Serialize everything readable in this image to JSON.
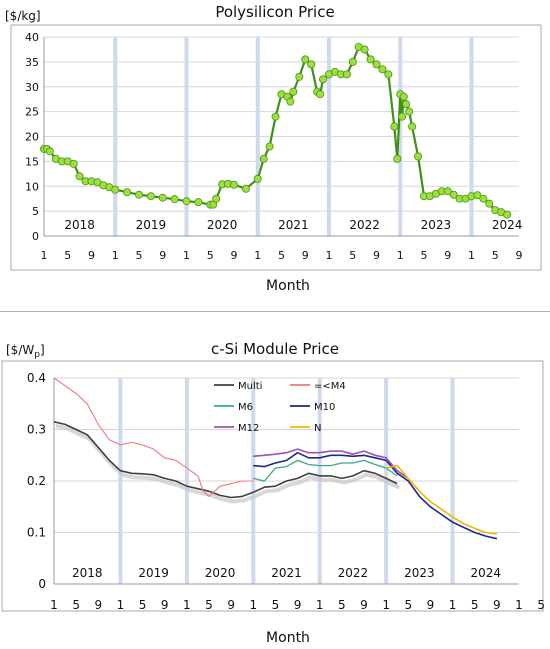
{
  "chart_data": [
    {
      "type": "line",
      "title": "Polysilicon Price",
      "ylabel": "[$/kg]",
      "xlabel": "Month",
      "ylim": [
        0,
        40
      ],
      "yticks": [
        0,
        5,
        10,
        15,
        20,
        25,
        30,
        35,
        40
      ],
      "year_labels": [
        "2018",
        "2019",
        "2020",
        "2021",
        "2022",
        "2023",
        "2024"
      ],
      "month_ticks": [
        "1",
        "5",
        "9",
        "1",
        "5",
        "9",
        "1",
        "5",
        "9",
        "1",
        "5",
        "9",
        "1",
        "5",
        "9",
        "1",
        "5",
        "9",
        "1",
        "5",
        "9"
      ],
      "grid": true,
      "x_unit": "months since Jan 2018",
      "colors": {
        "line": "#3f8f1a",
        "marker_fill": "#9be03c",
        "marker_stroke": "#4d8f1a",
        "year_band": "#cdd9ec"
      },
      "series": [
        {
          "x": [
            0,
            0.5,
            1,
            2,
            3,
            4,
            5,
            6,
            7,
            8,
            9,
            10,
            11,
            12,
            14,
            16,
            18,
            20,
            22,
            24,
            26,
            28,
            28.5,
            29,
            30,
            31,
            32,
            34,
            36,
            37,
            38,
            39,
            40,
            41,
            41.5,
            42,
            43,
            44,
            45,
            46,
            46.5,
            47,
            48,
            49,
            50,
            51,
            52,
            53,
            54,
            55,
            56,
            57,
            58,
            59,
            59.5,
            60,
            60.3,
            60.6,
            61,
            61.5,
            62,
            63,
            64,
            65,
            66,
            67,
            68,
            69,
            70,
            71,
            72,
            73,
            74,
            75,
            76,
            77,
            78
          ],
          "y": [
            17.5,
            17.5,
            17,
            15.5,
            15,
            15,
            14.5,
            12,
            11,
            11,
            10.8,
            10.2,
            9.8,
            9.3,
            8.8,
            8.3,
            8,
            7.7,
            7.4,
            7,
            6.8,
            6.3,
            6.3,
            7.5,
            10.4,
            10.5,
            10.3,
            9.5,
            11.5,
            15.5,
            18,
            24,
            28.5,
            28,
            27,
            29,
            32,
            35.5,
            34.5,
            29,
            28.5,
            31.5,
            32.5,
            33,
            32.5,
            32.5,
            35,
            38,
            37.5,
            35.5,
            34.5,
            33.5,
            32.5,
            22,
            15.5,
            28.5,
            24,
            28,
            26.5,
            25,
            22,
            16,
            8,
            8,
            8.5,
            9,
            9,
            8.3,
            7.5,
            7.5,
            8,
            8.2,
            7.5,
            6.5,
            5.2,
            4.8,
            4.3
          ]
        }
      ]
    },
    {
      "type": "line",
      "title": "c-Si Module Price",
      "ylabel": "[$/W",
      "ylabel_sub": "p",
      "ylabel_suffix": "]",
      "xlabel": "Month",
      "ylim": [
        0,
        0.4
      ],
      "yticks": [
        "0",
        "0.1",
        "0.2",
        "0.3",
        "0.4"
      ],
      "year_labels": [
        "2018",
        "2019",
        "2020",
        "2021",
        "2022",
        "2023",
        "2024"
      ],
      "month_ticks": [
        "1",
        "5",
        "9",
        "1",
        "5",
        "9",
        "1",
        "5",
        "9",
        "1",
        "5",
        "9",
        "1",
        "5",
        "9",
        "1",
        "5",
        "9",
        "1",
        "5",
        "9",
        "1",
        "5",
        "9"
      ],
      "grid": true,
      "legend_position": "top-center",
      "x_unit": "months since Jan 2018",
      "colors": {
        "year_band": "#cdd9ec"
      },
      "series": [
        {
          "name": "Multi",
          "color": "#404040",
          "width": 1.6,
          "x": [
            0,
            2,
            4,
            6,
            8,
            10,
            12,
            14,
            16,
            18,
            20,
            22,
            24,
            26,
            28,
            30,
            32,
            34,
            36,
            38,
            40,
            42,
            44,
            46,
            48,
            50,
            52,
            54,
            56,
            58,
            60,
            62
          ],
          "y": [
            0.315,
            0.31,
            0.3,
            0.29,
            0.265,
            0.24,
            0.22,
            0.215,
            0.214,
            0.212,
            0.205,
            0.2,
            0.19,
            0.185,
            0.18,
            0.172,
            0.168,
            0.17,
            0.178,
            0.188,
            0.19,
            0.2,
            0.205,
            0.215,
            0.21,
            0.21,
            0.205,
            0.21,
            0.22,
            0.215,
            0.205,
            0.195
          ]
        },
        {
          "name": "=<M4",
          "color": "#f07878",
          "width": 1.1,
          "x": [
            0,
            2,
            4,
            6,
            8,
            10,
            12,
            14,
            16,
            18,
            20,
            22,
            24,
            26,
            27,
            28,
            30,
            32,
            34,
            36
          ],
          "y": [
            0.4,
            0.385,
            0.37,
            0.35,
            0.31,
            0.28,
            0.27,
            0.275,
            0.27,
            0.262,
            0.245,
            0.24,
            0.225,
            0.21,
            0.18,
            0.17,
            0.19,
            0.195,
            0.2,
            0.2
          ]
        },
        {
          "name": "M6",
          "color": "#3aaa8a",
          "width": 1.3,
          "x": [
            36,
            38,
            40,
            42,
            44,
            46,
            48,
            50,
            52,
            54,
            56,
            58,
            60,
            62
          ],
          "y": [
            0.205,
            0.2,
            0.225,
            0.228,
            0.24,
            0.232,
            0.23,
            0.23,
            0.235,
            0.235,
            0.24,
            0.232,
            0.225,
            0.21
          ]
        },
        {
          "name": "M10",
          "color": "#1a2a8a",
          "width": 1.6,
          "x": [
            36,
            38,
            40,
            42,
            44,
            46,
            48,
            50,
            52,
            54,
            56,
            58,
            60,
            62,
            64,
            66,
            68,
            70,
            72,
            74,
            76,
            78,
            80
          ],
          "y": [
            0.23,
            0.228,
            0.235,
            0.24,
            0.255,
            0.245,
            0.245,
            0.25,
            0.25,
            0.248,
            0.25,
            0.245,
            0.24,
            0.215,
            0.2,
            0.17,
            0.15,
            0.135,
            0.12,
            0.11,
            0.1,
            0.093,
            0.088
          ]
        },
        {
          "name": "M12",
          "color": "#a050b0",
          "width": 1.6,
          "x": [
            36,
            38,
            40,
            42,
            44,
            46,
            48,
            50,
            52,
            54,
            56,
            58,
            60,
            62,
            64
          ],
          "y": [
            0.248,
            0.25,
            0.252,
            0.255,
            0.262,
            0.255,
            0.255,
            0.258,
            0.258,
            0.252,
            0.258,
            0.25,
            0.245,
            0.22,
            0.205
          ]
        },
        {
          "name": "N",
          "color": "#f0b400",
          "width": 1.6,
          "x": [
            60,
            62,
            64,
            66,
            68,
            70,
            72,
            74,
            76,
            78,
            80
          ],
          "y": [
            0.225,
            0.23,
            0.205,
            0.18,
            0.16,
            0.145,
            0.13,
            0.117,
            0.108,
            0.1,
            0.097
          ]
        }
      ]
    }
  ]
}
